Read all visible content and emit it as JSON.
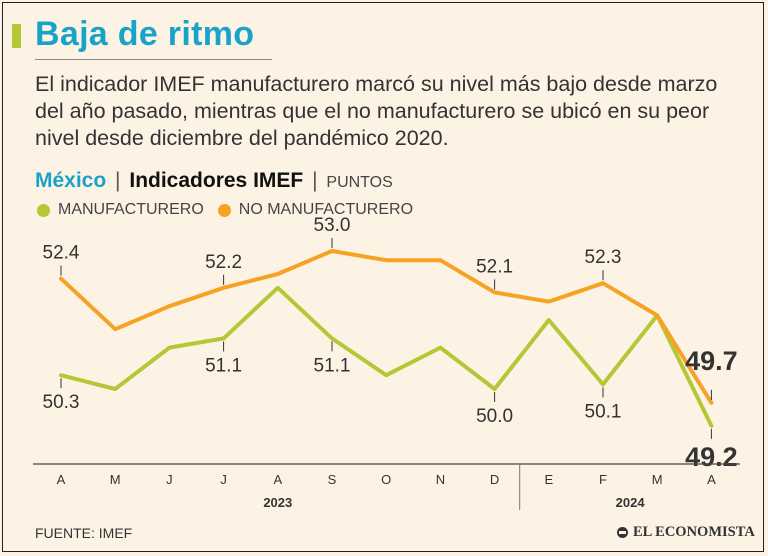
{
  "header": {
    "title": "Baja de ritmo",
    "subtitle": "El indicador IMEF manufacturero marcó su nivel más bajo desde marzo del año pasado, mientras que el no manufacturero se ubicó en su peor nivel desde diciembre del pandémico 2020."
  },
  "chart_header": {
    "country": "México",
    "separator": "|",
    "indicator": "Indicadores IMEF",
    "unit": "PUNTOS"
  },
  "colors": {
    "manufacturero": "#b5c736",
    "no_manufacturero": "#f5a225",
    "title_blue": "#1aa3c9"
  },
  "footer": {
    "source": "FUENTE: IMEF",
    "logo_text": "EL ECONOMISTA"
  },
  "chart_data": {
    "type": "line",
    "categories": [
      "A",
      "M",
      "J",
      "J",
      "A",
      "S",
      "O",
      "N",
      "D",
      "E",
      "F",
      "M",
      "A"
    ],
    "year_groups": [
      {
        "label": "2023",
        "from": 0,
        "to": 8
      },
      {
        "label": "2024",
        "from": 9,
        "to": 12
      }
    ],
    "series": [
      {
        "name": "NO MANUFACTURERO",
        "color": "#f5a225",
        "values": [
          52.4,
          51.3,
          51.8,
          52.2,
          52.5,
          53.0,
          52.8,
          52.8,
          52.1,
          51.9,
          52.3,
          51.6,
          49.7
        ],
        "labels": [
          {
            "index": 0,
            "text": "52.4",
            "pos": "above"
          },
          {
            "index": 3,
            "text": "52.2",
            "pos": "above"
          },
          {
            "index": 5,
            "text": "53.0",
            "pos": "above"
          },
          {
            "index": 8,
            "text": "52.1",
            "pos": "above"
          },
          {
            "index": 10,
            "text": "52.3",
            "pos": "above"
          },
          {
            "index": 12,
            "text": "49.7",
            "pos": "above",
            "bold": true
          }
        ]
      },
      {
        "name": "MANUFACTURERO",
        "color": "#b5c736",
        "values": [
          50.3,
          50.0,
          50.9,
          51.1,
          52.2,
          51.1,
          50.3,
          50.9,
          50.0,
          51.5,
          50.1,
          51.6,
          49.2
        ],
        "labels": [
          {
            "index": 0,
            "text": "50.3",
            "pos": "below"
          },
          {
            "index": 3,
            "text": "51.1",
            "pos": "below"
          },
          {
            "index": 5,
            "text": "51.1",
            "pos": "below"
          },
          {
            "index": 8,
            "text": "50.0",
            "pos": "below"
          },
          {
            "index": 10,
            "text": "50.1",
            "pos": "below"
          },
          {
            "index": 12,
            "text": "49.2",
            "pos": "below",
            "bold": true
          }
        ]
      }
    ],
    "ylim": [
      48.5,
      53.5
    ],
    "grid": false,
    "legend": "top-left"
  }
}
